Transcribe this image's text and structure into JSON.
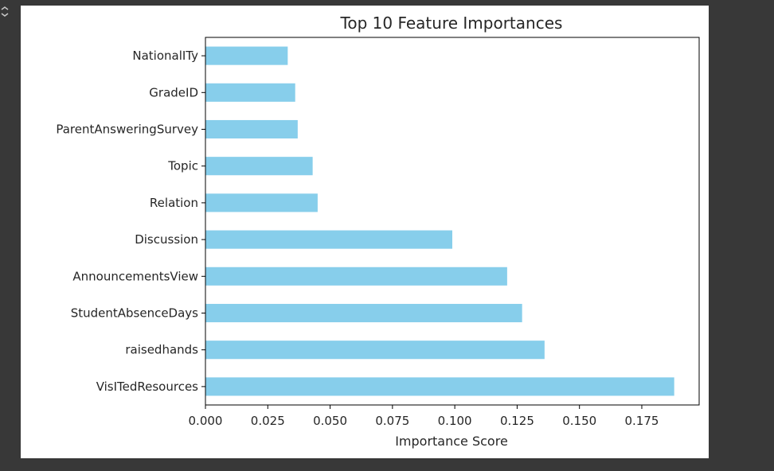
{
  "output_cell": {
    "icon": "output-collapse-icon"
  },
  "chart_data": {
    "type": "bar",
    "orientation": "horizontal",
    "title": "Top 10 Feature Importances",
    "xlabel": "Importance Score",
    "ylabel": "",
    "categories": [
      "VisITedResources",
      "raisedhands",
      "StudentAbsenceDays",
      "AnnouncementsView",
      "Discussion",
      "Relation",
      "Topic",
      "ParentAnsweringSurvey",
      "GradeID",
      "NationalITy"
    ],
    "values": [
      0.188,
      0.136,
      0.127,
      0.121,
      0.099,
      0.045,
      0.043,
      0.037,
      0.036,
      0.033
    ],
    "xlim": [
      0,
      0.198
    ],
    "xticks": [
      0.0,
      0.025,
      0.05,
      0.075,
      0.1,
      0.125,
      0.15,
      0.175
    ],
    "xtick_labels": [
      "0.000",
      "0.025",
      "0.050",
      "0.075",
      "0.100",
      "0.125",
      "0.150",
      "0.175"
    ],
    "bar_color": "#87ceeb",
    "grid": false,
    "legend": "none"
  }
}
